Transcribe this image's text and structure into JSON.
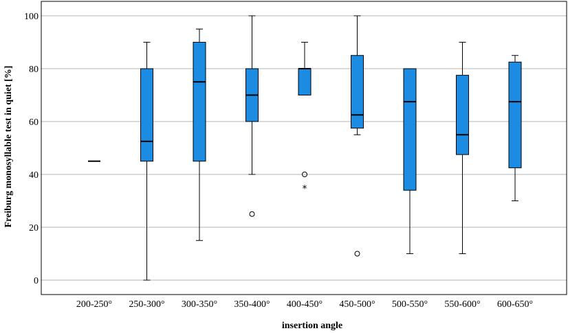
{
  "chart_data": {
    "type": "boxplot",
    "title": "",
    "xlabel": "insertion angle",
    "ylabel": "Freiburg monosyllable test in quiet  [%]",
    "ylim": [
      0,
      105
    ],
    "yticks": [
      0,
      20,
      40,
      60,
      80,
      100
    ],
    "grid": "horizontal",
    "box_color": "#1c8ce3",
    "categories": [
      "200-250°",
      "250-300°",
      "300-350°",
      "350-400°",
      "400-450°",
      "450-500°",
      "500-550°",
      "550-600°",
      "600-650°"
    ],
    "boxes": [
      {
        "category": "200-250°",
        "whisker_low": 45,
        "q1": 45,
        "median": 45,
        "q3": 45,
        "whisker_high": 45,
        "outliers": [],
        "extremes": []
      },
      {
        "category": "250-300°",
        "whisker_low": 0,
        "q1": 45,
        "median": 52.5,
        "q3": 80,
        "whisker_high": 90,
        "outliers": [],
        "extremes": []
      },
      {
        "category": "300-350°",
        "whisker_low": 15,
        "q1": 45,
        "median": 75,
        "q3": 90,
        "whisker_high": 95,
        "outliers": [],
        "extremes": []
      },
      {
        "category": "350-400°",
        "whisker_low": 40,
        "q1": 60,
        "median": 70,
        "q3": 80,
        "whisker_high": 100,
        "outliers": [
          25
        ],
        "extremes": []
      },
      {
        "category": "400-450°",
        "whisker_low": 70,
        "q1": 70,
        "median": 80,
        "q3": 80,
        "whisker_high": 90,
        "outliers": [
          40
        ],
        "extremes": [
          35
        ]
      },
      {
        "category": "450-500°",
        "whisker_low": 55,
        "q1": 57.5,
        "median": 62.5,
        "q3": 85,
        "whisker_high": 100,
        "outliers": [
          10
        ],
        "extremes": []
      },
      {
        "category": "500-550°",
        "whisker_low": 10,
        "q1": 34,
        "median": 67.5,
        "q3": 80,
        "whisker_high": 80,
        "outliers": [],
        "extremes": []
      },
      {
        "category": "550-600°",
        "whisker_low": 10,
        "q1": 47.5,
        "median": 55,
        "q3": 77.5,
        "whisker_high": 90,
        "outliers": [],
        "extremes": []
      },
      {
        "category": "600-650°",
        "whisker_low": 30,
        "q1": 42.5,
        "median": 67.5,
        "q3": 82.5,
        "whisker_high": 85,
        "outliers": [],
        "extremes": []
      }
    ]
  }
}
